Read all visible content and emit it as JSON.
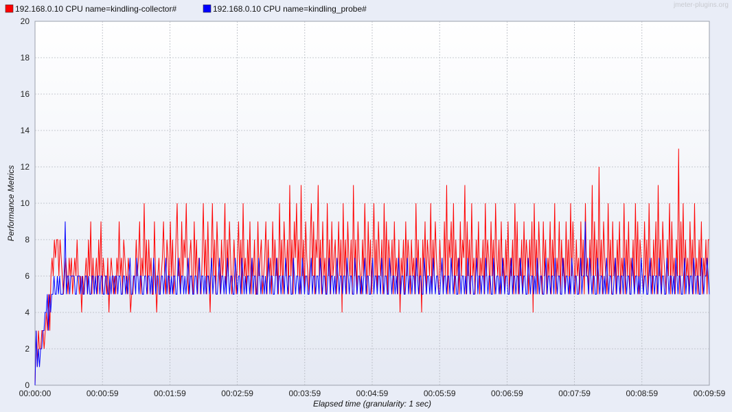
{
  "watermark": "jmeter-plugins.org",
  "chart_data": {
    "type": "line",
    "title": "",
    "xlabel": "Elapsed time (granularity: 1 sec)",
    "ylabel": "Performance Metrics",
    "ylim": [
      0,
      20
    ],
    "yticks": [
      "0",
      "2",
      "4",
      "6",
      "8",
      "10",
      "12",
      "14",
      "16",
      "18",
      "20"
    ],
    "xlim": [
      0,
      599
    ],
    "xticks": [
      "00:00:00",
      "00:00:59",
      "00:01:59",
      "00:02:59",
      "00:03:59",
      "00:04:59",
      "00:05:59",
      "00:06:59",
      "00:07:59",
      "00:08:59",
      "00:09:59"
    ],
    "grid": true,
    "legend_position": "top-left",
    "series": [
      {
        "name": "192.168.0.10 CPU name=kindling-collector#",
        "color": "#ff0000",
        "values": [
          0,
          3,
          1,
          3,
          2,
          2,
          3,
          3,
          2,
          3,
          4,
          3,
          5,
          3,
          6,
          7,
          6,
          8,
          7,
          8,
          8,
          6,
          8,
          7,
          6,
          5,
          6,
          7,
          6,
          5,
          7,
          6,
          7,
          5,
          6,
          7,
          6,
          8,
          6,
          5,
          6,
          4,
          6,
          5,
          6,
          7,
          5,
          8,
          6,
          9,
          5,
          7,
          5,
          6,
          7,
          5,
          8,
          6,
          9,
          5,
          7,
          6,
          6,
          5,
          7,
          4,
          6,
          7,
          6,
          5,
          6,
          5,
          7,
          6,
          9,
          6,
          7,
          5,
          8,
          7,
          6,
          5,
          7,
          6,
          4,
          5,
          5,
          6,
          6,
          8,
          6,
          7,
          9,
          5,
          7,
          6,
          10,
          6,
          8,
          5,
          8,
          6,
          7,
          5,
          5,
          9,
          6,
          4,
          6,
          7,
          5,
          6,
          7,
          9,
          6,
          5,
          8,
          7,
          5,
          9,
          6,
          8,
          5,
          6,
          8,
          10,
          6,
          7,
          5,
          9,
          6,
          8,
          7,
          10,
          6,
          5,
          7,
          8,
          6,
          5,
          9,
          6,
          8,
          5,
          7,
          6,
          5,
          7,
          10,
          6,
          8,
          5,
          9,
          6,
          4,
          7,
          10,
          6,
          8,
          5,
          9,
          7,
          6,
          5,
          8,
          6,
          7,
          10,
          5,
          8,
          6,
          9,
          7,
          5,
          6,
          8,
          6,
          5,
          7,
          9,
          6,
          8,
          5,
          10,
          6,
          7,
          5,
          8,
          6,
          9,
          5,
          7,
          6,
          8,
          5,
          5,
          9,
          6,
          7,
          8,
          5,
          6,
          7,
          9,
          5,
          8,
          6,
          7,
          5,
          9,
          6,
          8,
          6,
          7,
          5,
          10,
          6,
          8,
          5,
          9,
          7,
          6,
          8,
          5,
          11,
          6,
          8,
          5,
          9,
          7,
          10,
          6,
          8,
          5,
          11,
          6,
          8,
          5,
          9,
          7,
          6,
          5,
          8,
          10,
          6,
          9,
          5,
          8,
          7,
          11,
          6,
          8,
          5,
          9,
          6,
          7,
          5,
          10,
          6,
          8,
          5,
          9,
          6,
          7,
          8,
          5,
          6,
          9,
          6,
          8,
          4,
          10,
          6,
          8,
          5,
          9,
          7,
          6,
          8,
          5,
          11,
          6,
          8,
          5,
          9,
          7,
          6,
          5,
          8,
          6,
          10,
          7,
          5,
          9,
          6,
          8,
          5,
          7,
          10,
          6,
          8,
          5,
          9,
          7,
          6,
          8,
          5,
          10,
          6,
          9,
          5,
          8,
          7,
          6,
          8,
          5,
          9,
          6,
          7,
          5,
          8,
          4,
          7,
          6,
          8,
          5,
          9,
          6,
          8,
          7,
          5,
          8,
          6,
          7,
          5,
          10,
          6,
          8,
          5,
          7,
          4,
          8,
          6,
          9,
          5,
          8,
          7,
          6,
          10,
          5,
          8,
          6,
          9,
          7,
          6,
          5,
          8,
          6,
          7,
          5,
          9,
          6,
          11,
          5,
          8,
          7,
          9,
          6,
          10,
          5,
          8,
          6,
          7,
          5,
          9,
          6,
          8,
          7,
          11,
          5,
          9,
          6,
          8,
          5,
          10,
          6,
          7,
          5,
          8,
          6,
          9,
          5,
          7,
          6,
          8,
          5,
          10,
          6,
          8,
          7,
          5,
          9,
          6,
          8,
          5,
          10,
          7,
          6,
          8,
          5,
          9,
          6,
          7,
          5,
          8,
          6,
          9,
          5,
          7,
          6,
          8,
          5,
          10,
          6,
          9,
          5,
          7,
          6,
          8,
          5,
          9,
          6,
          8,
          7,
          5,
          8,
          6,
          9,
          4,
          10,
          6,
          8,
          5,
          9,
          7,
          6,
          5,
          9,
          6,
          8,
          5,
          7,
          6,
          9,
          5,
          8,
          6,
          10,
          5,
          7,
          6,
          9,
          5,
          8,
          6,
          7,
          5,
          9,
          6,
          8,
          5,
          10,
          6,
          9,
          7,
          5,
          8,
          6,
          7,
          5,
          9,
          6,
          8,
          5,
          10,
          6,
          7,
          5,
          8,
          6,
          11,
          5,
          9,
          6,
          8,
          5,
          12,
          6,
          8,
          5,
          9,
          7,
          6,
          5,
          10,
          6,
          8,
          5,
          9,
          6,
          7,
          5,
          8,
          6,
          9,
          5,
          7,
          6,
          10,
          5,
          8,
          6,
          9,
          5,
          7,
          6,
          8,
          5,
          10,
          6,
          9,
          5,
          8,
          7,
          6,
          5,
          9,
          6,
          8,
          5,
          10,
          6,
          7,
          5,
          8,
          6,
          9,
          5,
          11,
          6,
          8,
          5,
          9,
          7,
          6,
          5,
          8,
          6,
          10,
          5,
          9,
          6,
          7,
          5,
          8,
          6,
          13,
          5,
          9,
          6,
          10,
          5,
          8,
          6,
          7,
          5,
          9,
          6,
          8,
          5,
          10,
          6,
          7,
          5,
          8,
          6,
          9,
          5,
          7,
          6,
          8,
          5,
          8,
          8
        ]
      },
      {
        "name": "192.168.0.10 CPU name=kindling_probe#",
        "color": "#0000ff",
        "values": [
          0,
          3,
          1,
          2,
          1,
          2,
          2,
          3,
          3,
          4,
          4,
          5,
          3,
          5,
          4,
          5,
          5,
          6,
          5,
          5,
          6,
          5,
          6,
          5,
          5,
          5,
          6,
          9,
          5,
          6,
          6,
          5,
          6,
          6,
          6,
          6,
          5,
          5,
          6,
          6,
          6,
          5,
          6,
          5,
          5,
          6,
          6,
          5,
          6,
          5,
          5,
          6,
          6,
          5,
          6,
          5,
          6,
          6,
          5,
          6,
          6,
          5,
          5,
          6,
          6,
          5,
          5,
          6,
          5,
          6,
          6,
          5,
          6,
          6,
          5,
          6,
          6,
          5,
          5,
          6,
          6,
          5,
          6,
          5,
          6,
          7,
          5,
          5,
          6,
          6,
          5,
          7,
          6,
          5,
          6,
          6,
          5,
          5,
          6,
          6,
          5,
          6,
          6,
          5,
          6,
          5,
          7,
          6,
          5,
          6,
          6,
          5,
          5,
          6,
          6,
          5,
          6,
          7,
          5,
          6,
          6,
          5,
          6,
          5,
          6,
          6,
          5,
          5,
          7,
          6,
          5,
          6,
          6,
          5,
          6,
          5,
          6,
          7,
          5,
          6,
          6,
          5,
          5,
          6,
          6,
          5,
          6,
          7,
          5,
          6,
          6,
          5,
          6,
          5,
          6,
          6,
          5,
          6,
          7,
          5,
          6,
          6,
          5,
          5,
          6,
          7,
          5,
          6,
          6,
          5,
          6,
          5,
          7,
          6,
          5,
          6,
          6,
          5,
          5,
          7,
          6,
          5,
          6,
          6,
          5,
          7,
          6,
          5,
          6,
          5,
          6,
          6,
          5,
          6,
          7,
          5,
          6,
          6,
          5,
          5,
          7,
          6,
          5,
          6,
          6,
          5,
          6,
          5,
          6,
          7,
          5,
          6,
          6,
          5,
          5,
          6,
          7,
          5,
          6,
          6,
          5,
          6,
          6,
          5,
          7,
          6,
          5,
          6,
          6,
          5,
          5,
          7,
          6,
          5,
          6,
          6,
          5,
          6,
          5,
          7,
          6,
          5,
          6,
          6,
          5,
          5,
          6,
          7,
          5,
          6,
          6,
          5,
          6,
          6,
          5,
          7,
          6,
          5,
          6,
          6,
          5,
          5,
          6,
          7,
          5,
          6,
          6,
          5,
          6,
          5,
          7,
          6,
          5,
          6,
          6,
          5,
          6,
          6,
          5,
          7,
          6,
          5,
          6,
          6,
          5,
          5,
          7,
          6,
          5,
          6,
          6,
          5,
          6,
          5,
          6,
          7,
          5,
          6,
          6,
          5,
          5,
          6,
          7,
          5,
          6,
          6,
          5,
          6,
          6,
          5,
          7,
          6,
          5,
          6,
          6,
          5,
          5,
          7,
          6,
          5,
          6,
          6,
          5,
          6,
          5,
          7,
          6,
          5,
          6,
          6,
          5,
          5,
          6,
          7,
          5,
          6,
          6,
          5,
          6,
          6,
          5,
          7,
          6,
          5,
          6,
          6,
          5,
          5,
          7,
          6,
          5,
          6,
          6,
          5,
          6,
          5,
          7,
          6,
          5,
          6,
          6,
          5,
          5,
          6,
          7,
          5,
          6,
          6,
          5,
          6,
          6,
          5,
          7,
          6,
          5,
          6,
          6,
          5,
          5,
          7,
          6,
          5,
          6,
          6,
          5,
          6,
          5,
          7,
          6,
          5,
          6,
          6,
          5,
          5,
          6,
          7,
          5,
          6,
          6,
          5,
          6,
          6,
          5,
          7,
          6,
          5,
          6,
          6,
          5,
          5,
          7,
          6,
          5,
          6,
          6,
          5,
          6,
          5,
          7,
          6,
          5,
          6,
          6,
          5,
          5,
          6,
          7,
          5,
          6,
          6,
          5,
          6,
          6,
          5,
          7,
          6,
          5,
          6,
          6,
          5,
          5,
          7,
          6,
          5,
          6,
          6,
          5,
          6,
          5,
          7,
          6,
          5,
          6,
          6,
          5,
          5,
          6,
          7,
          5,
          6,
          6,
          5,
          6,
          6,
          5,
          7,
          6,
          5,
          6,
          6,
          5,
          5,
          7,
          6,
          5,
          6,
          6,
          5,
          6,
          5,
          7,
          6,
          5,
          6,
          6,
          5,
          5,
          6,
          7,
          5,
          6,
          6,
          9,
          6,
          6,
          5,
          7,
          6,
          5,
          6,
          6,
          5,
          5,
          7,
          6,
          5,
          6,
          6,
          5,
          6,
          5,
          7,
          6,
          5,
          6,
          6,
          5,
          5,
          6,
          7,
          5,
          6,
          6,
          5,
          6,
          6,
          5,
          7,
          6,
          5,
          6,
          6,
          5,
          5,
          7,
          6,
          5,
          6,
          6,
          5,
          6,
          5,
          7,
          6,
          5,
          6,
          6,
          5,
          5,
          6,
          7,
          5,
          6,
          6,
          5,
          6,
          6,
          5,
          7,
          6,
          5,
          6,
          6,
          5,
          5,
          7,
          6,
          5,
          6,
          6,
          5,
          6,
          5,
          7,
          6,
          5,
          6,
          6,
          5,
          5,
          6,
          7,
          5,
          6,
          6,
          5,
          6,
          6,
          5,
          7,
          6,
          5,
          6,
          6,
          5,
          5,
          7,
          6,
          5,
          6,
          6,
          7,
          6,
          5
        ]
      }
    ]
  }
}
